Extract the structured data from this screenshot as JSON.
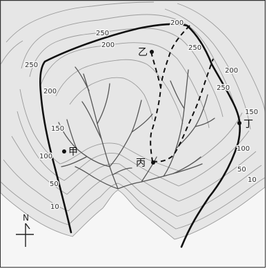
{
  "map": {
    "colors": {
      "land": "#e6e6e6",
      "paper": "#f6f6f6",
      "contour": "#9a9a9a",
      "river": "#555555",
      "boundary": "#111111"
    },
    "points": [
      {
        "id": "jia",
        "label": "甲"
      },
      {
        "id": "yi",
        "label": "乙"
      },
      {
        "id": "bing",
        "label": "丙"
      },
      {
        "id": "ding",
        "label": "丁"
      }
    ],
    "contour_labels": [
      "200",
      "250",
      "200",
      "250",
      "200",
      "250",
      "200",
      "250",
      "150",
      "100",
      "50",
      "10",
      "150",
      "100",
      "50",
      "10"
    ],
    "north_label": "N"
  }
}
